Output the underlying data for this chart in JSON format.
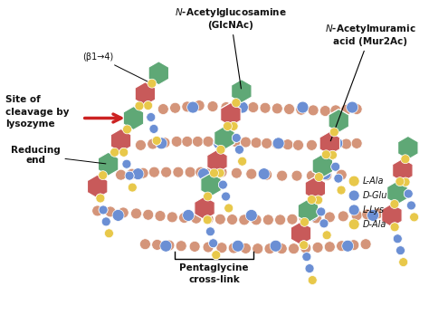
{
  "bg_color": "#ffffff",
  "glcnac_color": "#5fa876",
  "mur2ac_color": "#c85a5a",
  "yellow_color": "#e8c84a",
  "blue_color": "#6b8fd4",
  "peach_color": "#d4957a",
  "text_color": "#111111",
  "arrow_color": "#cc2222",
  "label_fontsize": 7.0,
  "labels": {
    "glcnac": "$N$-Acetylglucosamine\n(GlcNAc)",
    "mur2ac": "$N$-Acetylmuramic\nacid (Mur2Ac)",
    "beta14": "(β1→4)",
    "site_cleavage": "Site of\ncleavage by\nlysozyme",
    "reducing_end": "Reducing\nend",
    "pentaglycine": "Pentaglycine\ncross-link",
    "l_ala": "L-Ala",
    "d_glu": "D-Glu",
    "l_lys": "L-Lys",
    "d_ala": "D-Ala"
  }
}
